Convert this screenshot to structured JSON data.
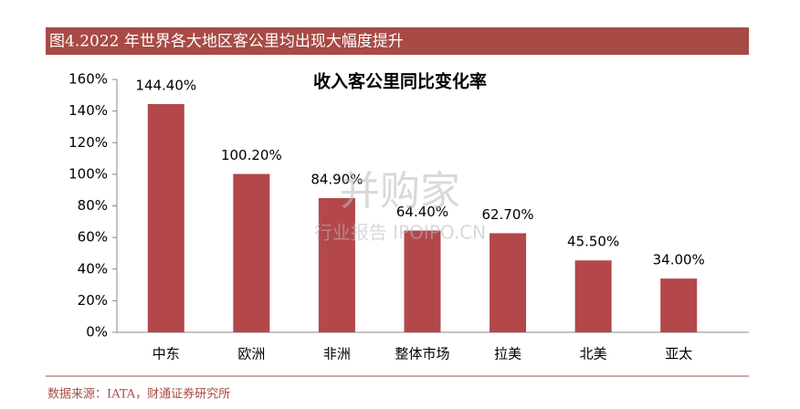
{
  "header": {
    "title": "图4.2022 年世界各大地区客公里均出现大幅度提升"
  },
  "chart_data": {
    "type": "bar",
    "title": "收入客公里同比变化率",
    "categories": [
      "中东",
      "欧洲",
      "非洲",
      "整体市场",
      "拉美",
      "北美",
      "亚太"
    ],
    "values": [
      144.4,
      100.2,
      84.9,
      64.4,
      62.7,
      45.5,
      34.0
    ],
    "value_labels": [
      "144.40%",
      "100.20%",
      "84.90%",
      "64.40%",
      "62.70%",
      "45.50%",
      "34.00%"
    ],
    "color": "#b3474a",
    "ylim": [
      0,
      160
    ],
    "yticks": [
      {
        "value": 0,
        "label": "0%"
      },
      {
        "value": 20,
        "label": "20%"
      },
      {
        "value": 40,
        "label": "40%"
      },
      {
        "value": 60,
        "label": "60%"
      },
      {
        "value": 80,
        "label": "80%"
      },
      {
        "value": 100,
        "label": "100%"
      },
      {
        "value": 120,
        "label": "120%"
      },
      {
        "value": 140,
        "label": "140%"
      },
      {
        "value": 160,
        "label": "160%"
      }
    ],
    "grid": false
  },
  "watermark": {
    "brand": "并购家",
    "tagline": "行业报告 IPOIPO.CN"
  },
  "footer": {
    "source": "数据来源：IATA，财通证券研究所"
  }
}
